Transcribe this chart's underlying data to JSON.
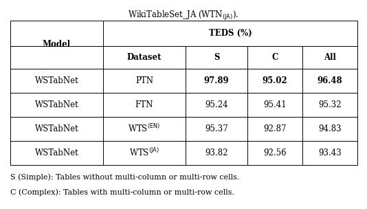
{
  "caption": "WikiTableSet_JA (WTN$_{(JA)}$).",
  "header_row1_col0": "Model",
  "header_row1_col1span": "TEDS (%)",
  "header_row2": [
    "Dataset",
    "S",
    "C",
    "All"
  ],
  "rows": [
    [
      "WSTabNet",
      "PTN",
      "97.89",
      "95.02",
      "96.48",
      true
    ],
    [
      "WSTabNet",
      "FTN",
      "95.24",
      "95.41",
      "95.32",
      false
    ],
    [
      "WSTabNet",
      "WTS$^{(EN)}$",
      "95.37",
      "92.87",
      "94.83",
      false
    ],
    [
      "WSTabNet",
      "WTS$^{(JA)}$",
      "93.82",
      "92.56",
      "93.43",
      false
    ]
  ],
  "footnotes": [
    "S (Simple): Tables without multi-column or multi-row cells.",
    "C (Complex): Tables with multi-column or multi-row cells."
  ],
  "background_color": "#ffffff",
  "font_size": 8.5
}
